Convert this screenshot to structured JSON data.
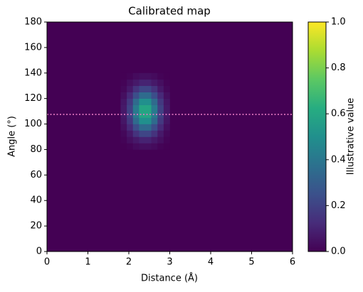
{
  "chart_data": {
    "type": "heatmap",
    "title": "Calibrated map",
    "x_label": "Distance (Å)",
    "y_label": "Angle (°)",
    "colorbar_label": "Illustrative value",
    "colormap": "viridis",
    "xlim": [
      0,
      6
    ],
    "ylim": [
      0,
      180
    ],
    "xticks": [
      0,
      1,
      2,
      3,
      4,
      5,
      6
    ],
    "yticks": [
      0,
      20,
      40,
      60,
      80,
      100,
      120,
      140,
      160,
      180
    ],
    "clim": [
      0,
      1
    ],
    "cticks": [
      {
        "value": 0,
        "label": "0.0"
      },
      {
        "value": 0.2,
        "label": "0.2"
      },
      {
        "value": 0.4,
        "label": "0.4"
      },
      {
        "value": 0.6,
        "label": "0.6"
      },
      {
        "value": 0.8,
        "label": "0.8"
      },
      {
        "value": 1,
        "label": "1.0"
      }
    ],
    "x_edges": [
      1.8,
      1.95,
      2.1,
      2.25,
      2.4,
      2.55,
      2.7,
      2.85,
      3.0
    ],
    "y_edges": [
      80,
      85,
      90,
      95,
      100,
      105,
      110,
      115,
      120,
      125,
      130,
      135,
      140
    ],
    "z": [
      [
        0.0,
        0.01,
        0.03,
        0.04,
        0.04,
        0.03,
        0.01,
        0.0
      ],
      [
        0.01,
        0.04,
        0.07,
        0.1,
        0.1,
        0.07,
        0.04,
        0.01
      ],
      [
        0.02,
        0.07,
        0.15,
        0.21,
        0.21,
        0.15,
        0.07,
        0.02
      ],
      [
        0.04,
        0.12,
        0.24,
        0.35,
        0.35,
        0.24,
        0.12,
        0.04
      ],
      [
        0.06,
        0.17,
        0.35,
        0.5,
        0.5,
        0.35,
        0.17,
        0.06
      ],
      [
        0.07,
        0.2,
        0.41,
        0.59,
        0.59,
        0.41,
        0.2,
        0.07
      ],
      [
        0.07,
        0.2,
        0.41,
        0.59,
        0.59,
        0.41,
        0.2,
        0.07
      ],
      [
        0.06,
        0.17,
        0.35,
        0.5,
        0.5,
        0.35,
        0.17,
        0.06
      ],
      [
        0.04,
        0.12,
        0.24,
        0.35,
        0.35,
        0.24,
        0.12,
        0.04
      ],
      [
        0.02,
        0.07,
        0.15,
        0.21,
        0.21,
        0.15,
        0.07,
        0.02
      ],
      [
        0.01,
        0.04,
        0.07,
        0.1,
        0.1,
        0.07,
        0.04,
        0.01
      ],
      [
        0.0,
        0.01,
        0.03,
        0.04,
        0.04,
        0.03,
        0.01,
        0.0
      ]
    ],
    "hline": {
      "value": 107.5,
      "color": "#e377c2"
    }
  }
}
